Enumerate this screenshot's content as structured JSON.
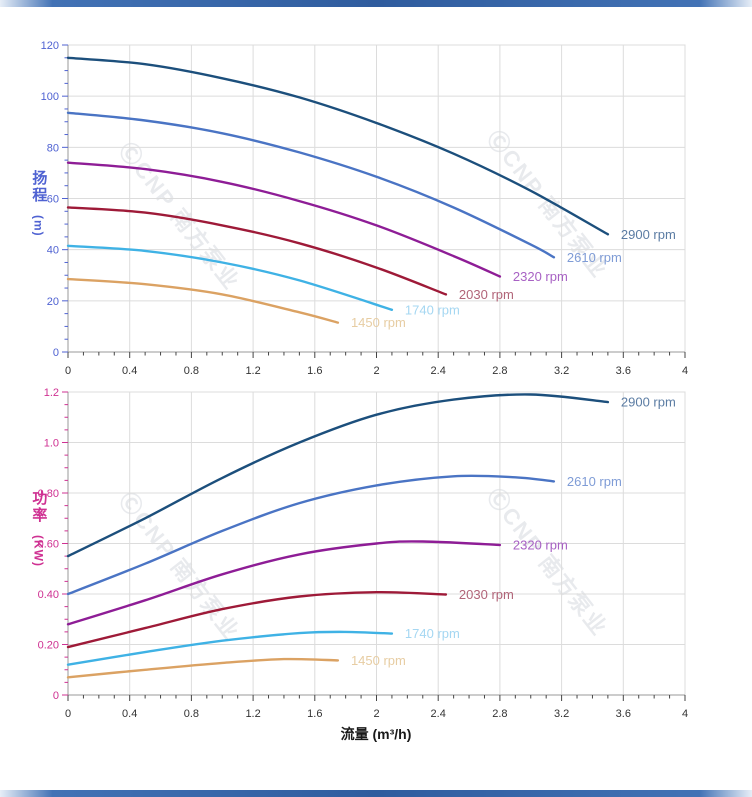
{
  "page": {
    "watermark": "ⒸCNP 南方泵业",
    "watermark_color": "#d6d9e0",
    "brand_bar_color": "#2f5c9e"
  },
  "chart_data": [
    {
      "type": "line",
      "id": "head",
      "title": "",
      "xlabel": "",
      "ylabel": "扬程 (m)",
      "ylabel_main": "扬程",
      "ylabel_unit": "(m)",
      "xlim": [
        0,
        4
      ],
      "ylim": [
        0,
        120
      ],
      "grid": true,
      "axis_color": "#4f62d2",
      "xtick_color": "#333333",
      "xticks": [
        0,
        0.4,
        0.8,
        1.2,
        1.6,
        2,
        2.4,
        2.8,
        3.2,
        3.6,
        4
      ],
      "xtick_labels": [
        "0",
        "0.4",
        "0.8",
        "1.2",
        "1.6",
        "2",
        "2.4",
        "2.8",
        "3.2",
        "3.6",
        "4"
      ],
      "yticks": [
        0,
        20,
        40,
        60,
        80,
        100,
        120
      ],
      "ytick_labels": [
        "0",
        "20",
        "40",
        "60",
        "80",
        "100",
        "120"
      ],
      "legend_position": "at-line-end",
      "series": [
        {
          "name": "2900 rpm",
          "rpm": 2900,
          "color": "#1c4f7c",
          "label_color": "#5b7ca3",
          "points": [
            [
              0,
              115
            ],
            [
              0.5,
              112.5
            ],
            [
              1,
              107
            ],
            [
              1.5,
              99.5
            ],
            [
              2,
              89.5
            ],
            [
              2.5,
              77.5
            ],
            [
              3,
              63
            ],
            [
              3.5,
              46
            ]
          ]
        },
        {
          "name": "2610 rpm",
          "rpm": 2610,
          "color": "#4a74c4",
          "label_color": "#7f9cd6",
          "points": [
            [
              0,
              93.5
            ],
            [
              0.5,
              90.5
            ],
            [
              1,
              85.5
            ],
            [
              1.5,
              78
            ],
            [
              2,
              68.5
            ],
            [
              2.5,
              56.5
            ],
            [
              3,
              42
            ],
            [
              3.15,
              37
            ]
          ]
        },
        {
          "name": "2320 rpm",
          "rpm": 2320,
          "color": "#8e1d96",
          "label_color": "#a862c4",
          "points": [
            [
              0,
              74
            ],
            [
              0.5,
              71.5
            ],
            [
              1,
              66.5
            ],
            [
              1.5,
              59
            ],
            [
              2,
              49.5
            ],
            [
              2.5,
              37.5
            ],
            [
              2.8,
              29.5
            ]
          ]
        },
        {
          "name": "2030 rpm",
          "rpm": 2030,
          "color": "#9e1a38",
          "label_color": "#b16478",
          "points": [
            [
              0,
              56.5
            ],
            [
              0.5,
              54.5
            ],
            [
              1,
              49.5
            ],
            [
              1.5,
              42.5
            ],
            [
              2,
              33
            ],
            [
              2.45,
              22.5
            ]
          ]
        },
        {
          "name": "1740 rpm",
          "rpm": 1740,
          "color": "#3fb2e5",
          "label_color": "#a5d7f2",
          "points": [
            [
              0,
              41.5
            ],
            [
              0.5,
              39.5
            ],
            [
              1,
              35
            ],
            [
              1.5,
              28
            ],
            [
              2.1,
              16.5
            ]
          ]
        },
        {
          "name": "1450 rpm",
          "rpm": 1450,
          "color": "#dba263",
          "label_color": "#e7cda3",
          "points": [
            [
              0,
              28.5
            ],
            [
              0.5,
              26.5
            ],
            [
              1,
              22.5
            ],
            [
              1.5,
              15.5
            ],
            [
              1.75,
              11.5
            ]
          ]
        }
      ]
    },
    {
      "type": "line",
      "id": "power",
      "title": "",
      "xlabel": "流量 (m³/h)",
      "ylabel": "功率 (KW)",
      "ylabel_main": "功率",
      "ylabel_unit": "(KW)",
      "xlim": [
        0,
        4
      ],
      "ylim": [
        0,
        1.2
      ],
      "grid": true,
      "axis_color": "#cf3192",
      "xtick_color": "#333333",
      "xticks": [
        0,
        0.4,
        0.8,
        1.2,
        1.6,
        2,
        2.4,
        2.8,
        3.2,
        3.6,
        4
      ],
      "xtick_labels": [
        "0",
        "0.4",
        "0.8",
        "1.2",
        "1.6",
        "2",
        "2.4",
        "2.8",
        "3.2",
        "3.6",
        "4"
      ],
      "yticks": [
        0,
        0.2,
        0.4,
        0.6,
        0.8,
        1.0,
        1.2
      ],
      "ytick_labels": [
        "0",
        "0.20",
        "0.40",
        "0.60",
        "0.80",
        "1.0",
        "1.2"
      ],
      "legend_position": "at-line-end",
      "series": [
        {
          "name": "2900 rpm",
          "rpm": 2900,
          "color": "#1c4f7c",
          "label_color": "#5b7ca3",
          "points": [
            [
              0,
              0.55
            ],
            [
              0.5,
              0.7
            ],
            [
              1,
              0.86
            ],
            [
              1.5,
              1.0
            ],
            [
              2,
              1.11
            ],
            [
              2.5,
              1.17
            ],
            [
              3,
              1.19
            ],
            [
              3.5,
              1.16
            ]
          ]
        },
        {
          "name": "2610 rpm",
          "rpm": 2610,
          "color": "#4a74c4",
          "label_color": "#7f9cd6",
          "points": [
            [
              0,
              0.4
            ],
            [
              0.5,
              0.52
            ],
            [
              1,
              0.65
            ],
            [
              1.5,
              0.76
            ],
            [
              2,
              0.83
            ],
            [
              2.5,
              0.866
            ],
            [
              2.9,
              0.862
            ],
            [
              3.15,
              0.846
            ]
          ]
        },
        {
          "name": "2320 rpm",
          "rpm": 2320,
          "color": "#8e1d96",
          "label_color": "#a862c4",
          "points": [
            [
              0,
              0.28
            ],
            [
              0.5,
              0.375
            ],
            [
              1,
              0.478
            ],
            [
              1.5,
              0.557
            ],
            [
              2,
              0.6
            ],
            [
              2.3,
              0.608
            ],
            [
              2.8,
              0.594
            ]
          ]
        },
        {
          "name": "2030 rpm",
          "rpm": 2030,
          "color": "#9e1a38",
          "label_color": "#b16478",
          "points": [
            [
              0,
              0.19
            ],
            [
              0.5,
              0.265
            ],
            [
              1,
              0.34
            ],
            [
              1.5,
              0.39
            ],
            [
              2,
              0.407
            ],
            [
              2.45,
              0.398
            ]
          ]
        },
        {
          "name": "1740 rpm",
          "rpm": 1740,
          "color": "#3fb2e5",
          "label_color": "#a5d7f2",
          "points": [
            [
              0,
              0.12
            ],
            [
              0.5,
              0.17
            ],
            [
              1,
              0.215
            ],
            [
              1.5,
              0.245
            ],
            [
              1.8,
              0.25
            ],
            [
              2.1,
              0.243
            ]
          ]
        },
        {
          "name": "1450 rpm",
          "rpm": 1450,
          "color": "#dba263",
          "label_color": "#e7cda3",
          "points": [
            [
              0,
              0.07
            ],
            [
              0.5,
              0.1
            ],
            [
              1,
              0.127
            ],
            [
              1.4,
              0.142
            ],
            [
              1.75,
              0.137
            ]
          ]
        }
      ]
    }
  ]
}
